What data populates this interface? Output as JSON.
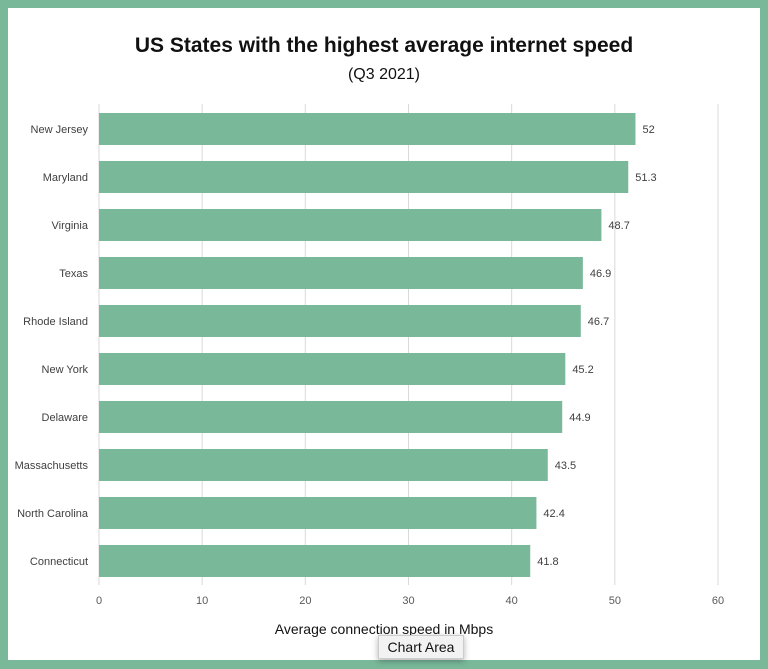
{
  "chart_data": {
    "type": "bar",
    "orientation": "horizontal",
    "title": "US States with the highest average internet speed",
    "subtitle": "(Q3 2021)",
    "xlabel": "Average connection speed in Mbps",
    "ylabel": "",
    "categories": [
      "New Jersey",
      "Maryland",
      "Virginia",
      "Texas",
      "Rhode Island",
      "New York",
      "Delaware",
      "Massachusetts",
      "North Carolina",
      "Connecticut"
    ],
    "values": [
      52,
      51.3,
      48.7,
      46.9,
      46.7,
      45.2,
      44.9,
      43.5,
      42.4,
      41.8
    ],
    "xlim": [
      0,
      60
    ],
    "xticks": [
      0,
      10,
      20,
      30,
      40,
      50,
      60
    ],
    "grid": true,
    "bar_color": "#79b899",
    "border_color": "#79b899"
  },
  "tooltip": "Chart Area"
}
